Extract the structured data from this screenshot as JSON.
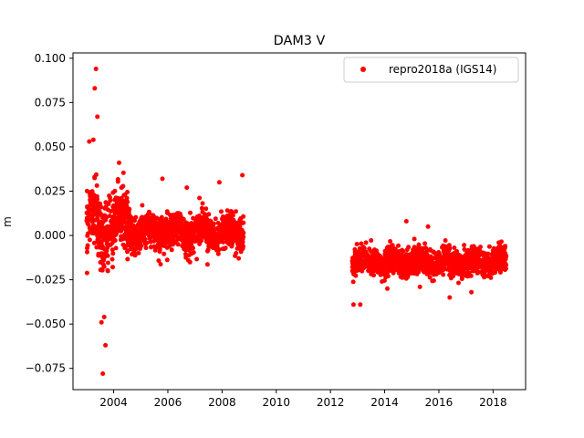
{
  "chart_data": {
    "type": "scatter",
    "title": "DAM3 V",
    "xlabel": "",
    "ylabel": "m",
    "xlim": [
      2002.5,
      2019.2
    ],
    "ylim": [
      -0.087,
      0.103
    ],
    "x_ticks": [
      "2004",
      "2006",
      "2008",
      "2010",
      "2012",
      "2014",
      "2016",
      "2018"
    ],
    "y_ticks": [
      "0.100",
      "0.075",
      "0.050",
      "0.025",
      "0.000",
      "−0.025",
      "−0.050",
      "−0.075"
    ],
    "grid": false,
    "legend_position": "top-right",
    "colors": {
      "series": "#ff0000",
      "axes": "#000000"
    },
    "series": [
      {
        "name": "repro2018a (IGS14)",
        "marker": "dot",
        "segments": [
          {
            "x_range": [
              2003.0,
              2004.6
            ],
            "mean": 0.008,
            "spread": 0.014
          },
          {
            "x_range": [
              2004.6,
              2008.8
            ],
            "mean": 0.002,
            "spread": 0.008
          },
          {
            "x_range": [
              2012.8,
              2018.5
            ],
            "mean": -0.015,
            "spread": 0.006
          }
        ],
        "notable_points": [
          {
            "x": 2003.35,
            "y": 0.094
          },
          {
            "x": 2003.3,
            "y": 0.083
          },
          {
            "x": 2003.4,
            "y": 0.067
          },
          {
            "x": 2003.1,
            "y": 0.053
          },
          {
            "x": 2003.25,
            "y": 0.054
          },
          {
            "x": 2003.7,
            "y": -0.062
          },
          {
            "x": 2003.6,
            "y": -0.078
          },
          {
            "x": 2003.55,
            "y": -0.049
          },
          {
            "x": 2003.65,
            "y": -0.046
          },
          {
            "x": 2004.2,
            "y": 0.041
          },
          {
            "x": 2005.8,
            "y": 0.032
          },
          {
            "x": 2007.9,
            "y": 0.03
          },
          {
            "x": 2008.75,
            "y": 0.034
          },
          {
            "x": 2006.7,
            "y": 0.027
          },
          {
            "x": 2012.85,
            "y": -0.039
          },
          {
            "x": 2013.1,
            "y": -0.039
          },
          {
            "x": 2014.8,
            "y": 0.008
          },
          {
            "x": 2015.6,
            "y": 0.005
          },
          {
            "x": 2014.1,
            "y": -0.03
          },
          {
            "x": 2015.3,
            "y": -0.029
          },
          {
            "x": 2016.4,
            "y": -0.035
          },
          {
            "x": 2017.2,
            "y": -0.032
          }
        ]
      }
    ]
  }
}
